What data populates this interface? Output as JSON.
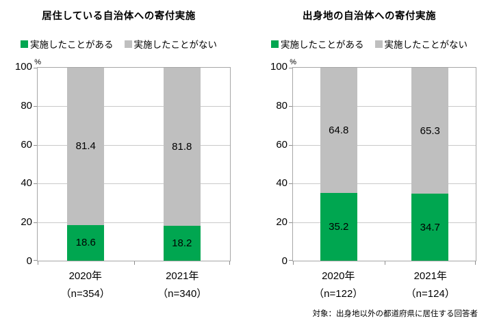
{
  "colors": {
    "done": "#00a650",
    "not_done": "#bfbfbf",
    "axis": "#a6a6a6",
    "gridline": "#c9c9c9"
  },
  "y_axis": {
    "unit": "%",
    "ticks": [
      "100",
      "80",
      "60",
      "40",
      "20",
      "0"
    ]
  },
  "footnote": "対象：出身地以外の都道府県に居住する回答者",
  "chart_data": [
    {
      "type": "bar",
      "stacked": true,
      "title": "居住している自治体への寄付実施",
      "ylabel": "%",
      "ylim": [
        0,
        100
      ],
      "grid": true,
      "legend_position": "top",
      "categories": [
        "2020年",
        "2021年"
      ],
      "category_sublabels": [
        "（n=354）",
        "（n=340）"
      ],
      "series": [
        {
          "name": "実施したことがある",
          "color": "#00a650",
          "values": [
            18.6,
            18.2
          ]
        },
        {
          "name": "実施したことがない",
          "color": "#bfbfbf",
          "values": [
            81.4,
            81.8
          ]
        }
      ]
    },
    {
      "type": "bar",
      "stacked": true,
      "title": "出身地の自治体への寄付実施",
      "ylabel": "%",
      "ylim": [
        0,
        100
      ],
      "grid": true,
      "legend_position": "top",
      "categories": [
        "2020年",
        "2021年"
      ],
      "category_sublabels": [
        "（n=122）",
        "（n=124）"
      ],
      "series": [
        {
          "name": "実施したことがある",
          "color": "#00a650",
          "values": [
            35.2,
            34.7
          ]
        },
        {
          "name": "実施したことがない",
          "color": "#bfbfbf",
          "values": [
            64.8,
            65.3
          ]
        }
      ]
    }
  ]
}
